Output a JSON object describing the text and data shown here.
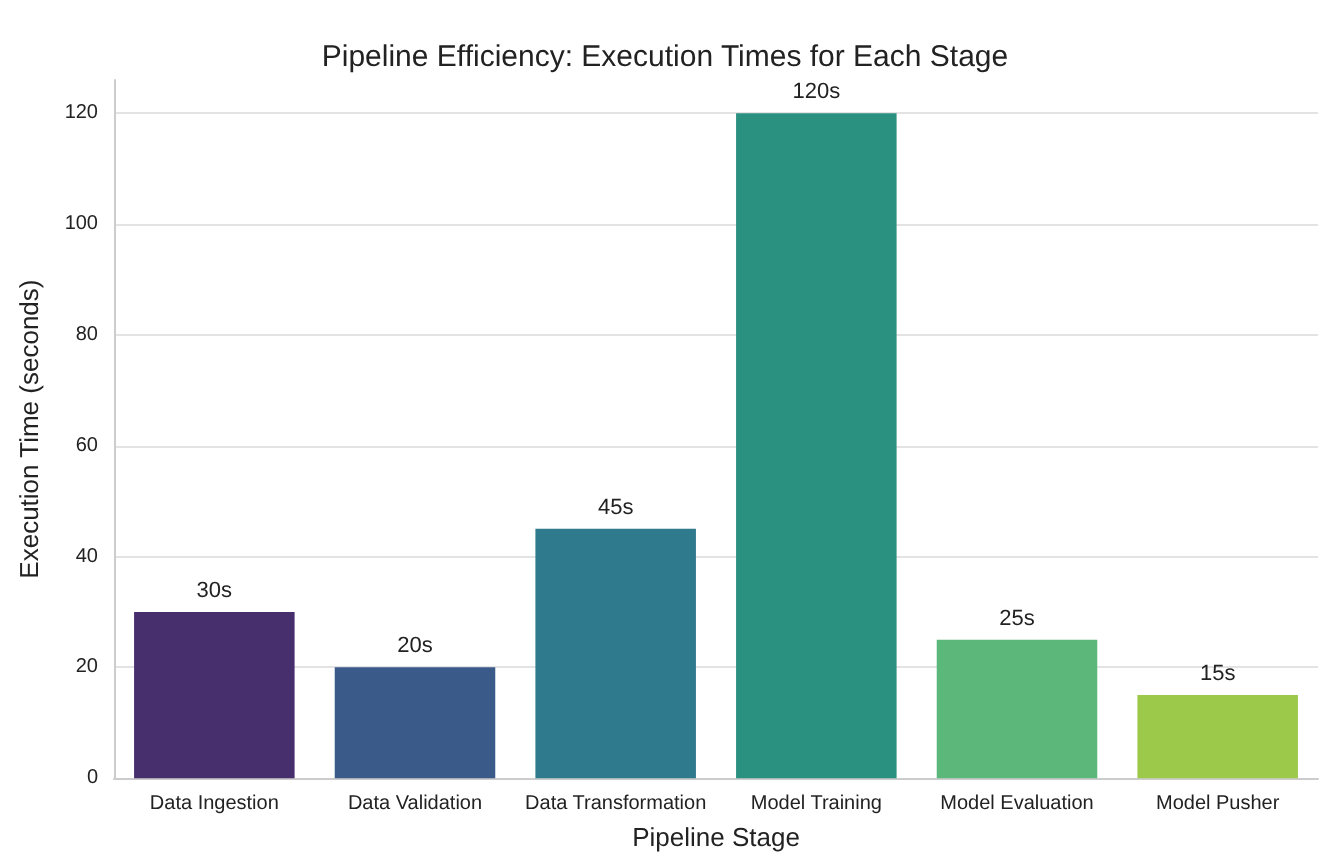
{
  "chart_data": {
    "type": "bar",
    "title": "Pipeline Efficiency: Execution Times for Each Stage",
    "xlabel": "Pipeline Stage",
    "ylabel": "Execution Time (seconds)",
    "categories": [
      "Data Ingestion",
      "Data Validation",
      "Data Transformation",
      "Model Training",
      "Model Evaluation",
      "Model Pusher"
    ],
    "values": [
      30,
      20,
      45,
      120,
      25,
      15
    ],
    "colors": [
      "#472f6e",
      "#3a5a8a",
      "#2f7a8c",
      "#2a9080",
      "#5cb87a",
      "#9dc94a"
    ],
    "value_labels": [
      "30s",
      "20s",
      "45s",
      "120s",
      "25s",
      "15s"
    ],
    "ylim": [
      0,
      126
    ],
    "yticks": [
      0,
      20,
      40,
      60,
      80,
      100,
      120
    ],
    "grid": "y"
  }
}
